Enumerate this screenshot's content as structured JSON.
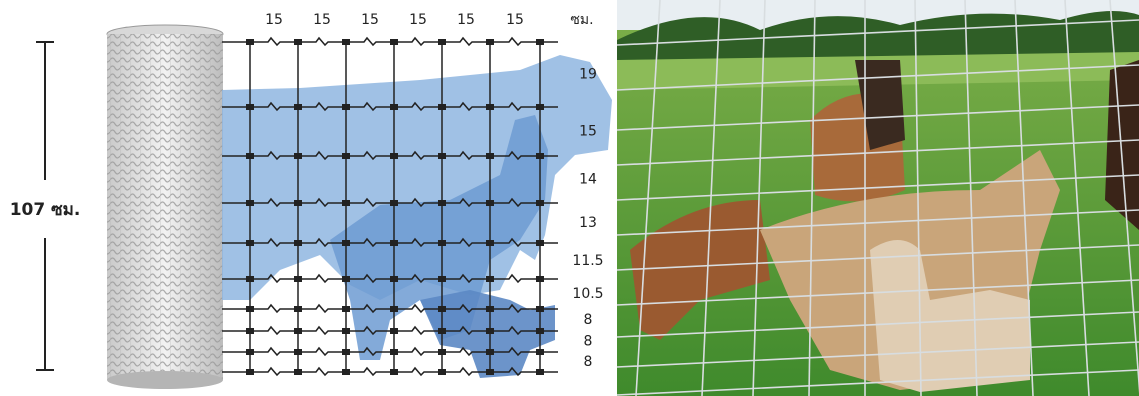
{
  "height_label": "107 ซม.",
  "column_spacings": [
    "15",
    "15",
    "15",
    "15",
    "15",
    "15"
  ],
  "unit": "ซม.",
  "row_spacings": [
    "19",
    "15",
    "14",
    "13",
    "11.5",
    "10.5",
    "8",
    "8",
    "8"
  ]
}
